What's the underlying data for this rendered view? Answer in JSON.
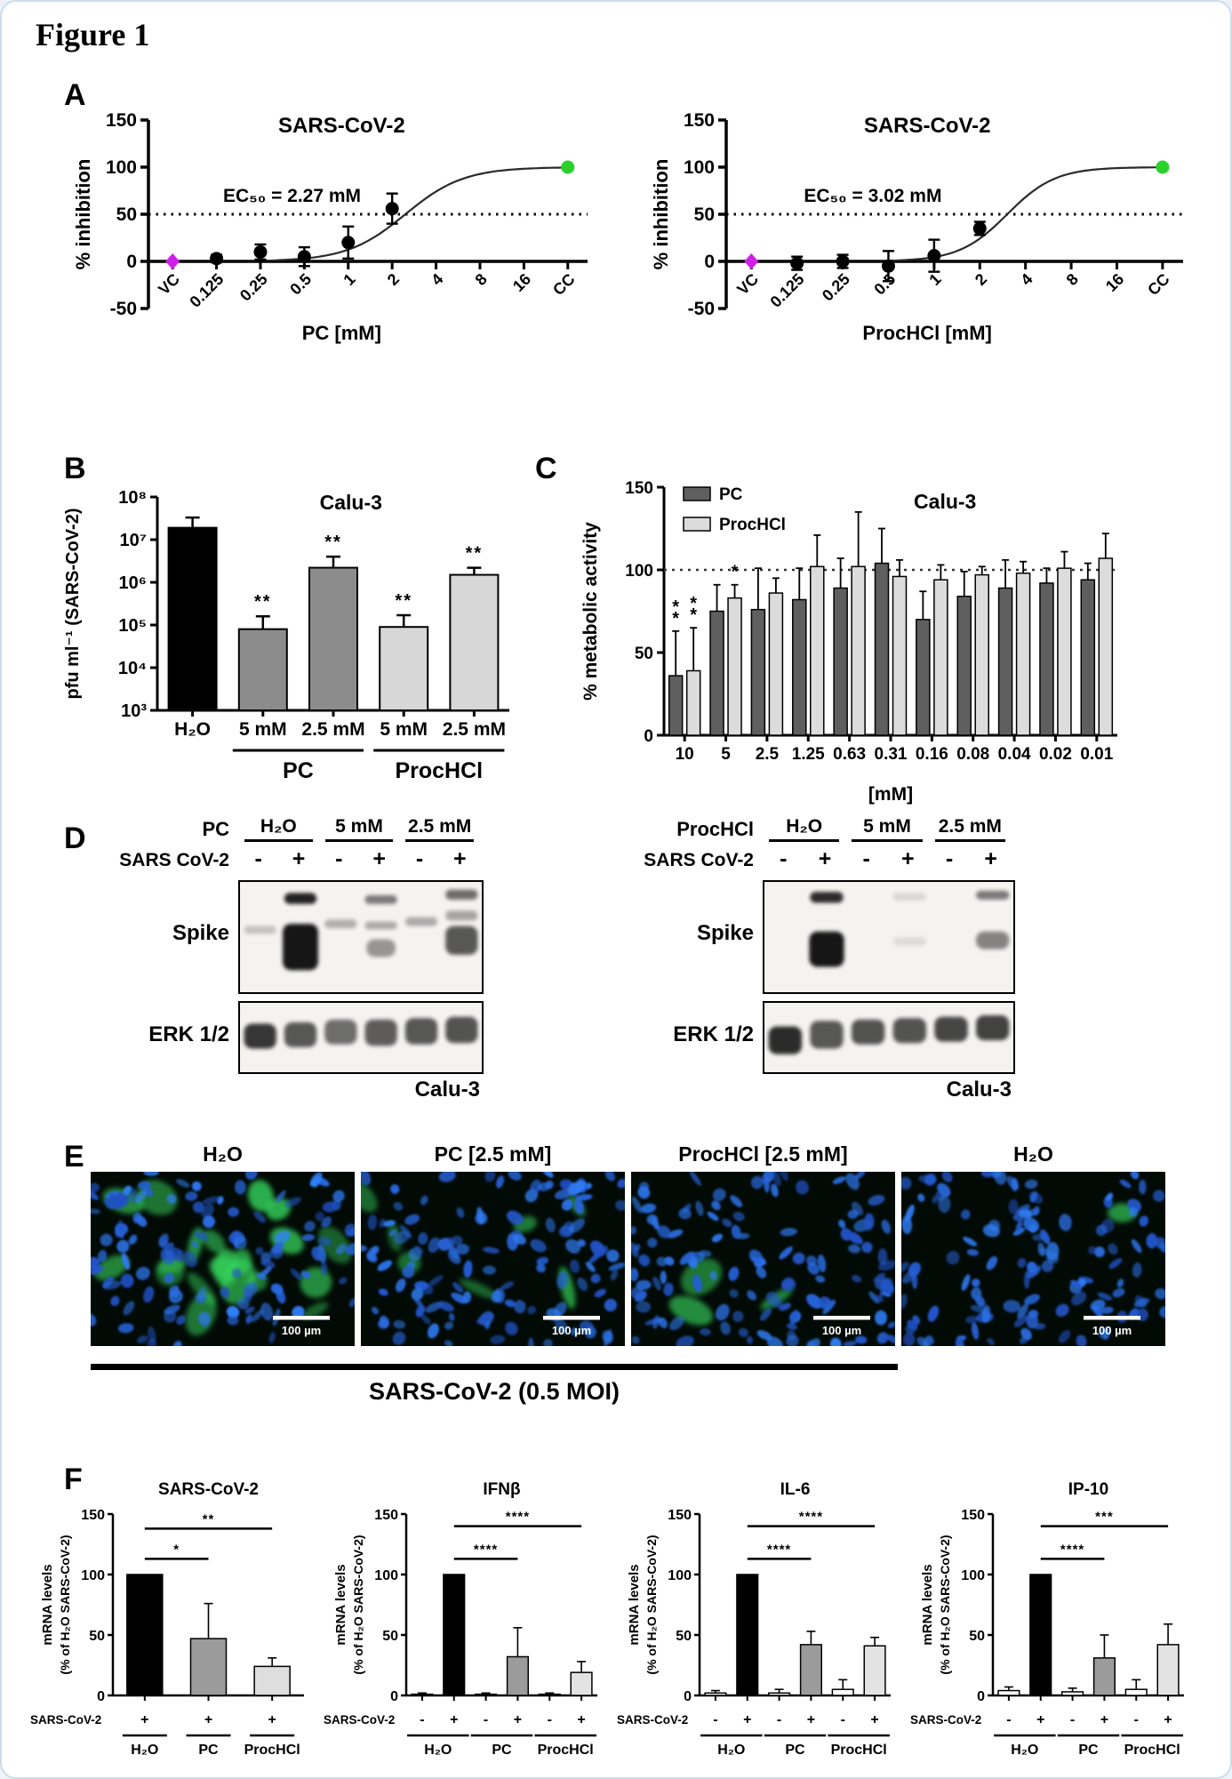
{
  "figure_title": "Figure 1",
  "panel_labels": {
    "a": "A",
    "b": "B",
    "c": "C",
    "d": "D",
    "e": "E",
    "f": "F"
  },
  "colors": {
    "magenta": "#cf1fe8",
    "green": "#2bd12b",
    "pc_dark": "#5f5f5f",
    "pc_mid": "#8c8c8c",
    "proc_light": "#d7d7d7",
    "black": "#000000"
  },
  "chart_data": [
    {
      "id": "dose-pc",
      "render": "dose",
      "type": "line",
      "title": "SARS-CoV-2",
      "annotation": "EC₅₀ = 2.27 mM",
      "ylabel": "% inhibition",
      "ylim": [
        -50,
        150
      ],
      "yticks": [
        -50,
        0,
        50,
        100,
        150
      ],
      "hline": 50,
      "categories": [
        "VC",
        "0.125",
        "0.25",
        "0.5",
        "1",
        "2",
        "4",
        "8",
        "16",
        "CC"
      ],
      "xlabel": "PC [mM]",
      "points": [
        {
          "x": 0,
          "y": 0,
          "e": 0,
          "color": "#cf1fe8",
          "shape": "diamond"
        },
        {
          "x": 1,
          "y": 3,
          "e": 4
        },
        {
          "x": 2,
          "y": 10,
          "e": 8
        },
        {
          "x": 3,
          "y": 5,
          "e": 10
        },
        {
          "x": 4,
          "y": 20,
          "e": 17
        },
        {
          "x": 5,
          "y": 56,
          "e": 16
        },
        {
          "x": 9,
          "y": 100,
          "e": 0,
          "color": "#2bd12b"
        }
      ],
      "curve": {
        "mid": 5.3,
        "k": 1.5,
        "from": 2.3,
        "to": 9
      }
    },
    {
      "id": "dose-proc",
      "render": "dose",
      "type": "line",
      "title": "SARS-CoV-2",
      "annotation": "EC₅₀ = 3.02 mM",
      "ylabel": "% inhibition",
      "ylim": [
        -50,
        150
      ],
      "yticks": [
        -50,
        0,
        50,
        100,
        150
      ],
      "hline": 50,
      "categories": [
        "VC",
        "0.125",
        "0.25",
        "0.5",
        "1",
        "2",
        "4",
        "8",
        "16",
        "CC"
      ],
      "xlabel": "ProcHCl [mM]",
      "points": [
        {
          "x": 0,
          "y": 0,
          "e": 0,
          "color": "#cf1fe8",
          "shape": "diamond"
        },
        {
          "x": 1,
          "y": -2,
          "e": 7
        },
        {
          "x": 2,
          "y": 0,
          "e": 7
        },
        {
          "x": 3,
          "y": -5,
          "e": 16
        },
        {
          "x": 4,
          "y": 6,
          "e": 17
        },
        {
          "x": 5,
          "y": 35,
          "e": 7
        },
        {
          "x": 9,
          "y": 100,
          "e": 0,
          "color": "#2bd12b"
        }
      ],
      "curve": {
        "mid": 5.6,
        "k": 1.9,
        "from": 3.0,
        "to": 9
      }
    },
    {
      "id": "pfu",
      "render": "logbar",
      "type": "bar",
      "title": "Calu-3",
      "ylabel": "pfu ml⁻¹ (SARS-CoV-2)",
      "log_ticks": [
        "10³",
        "10⁴",
        "10⁵",
        "10⁶",
        "10⁷",
        "10⁸"
      ],
      "log_range": [
        3,
        8
      ],
      "categories": [
        "H₂O",
        "5 mM",
        "2.5 mM",
        "5 mM",
        "2.5 mM"
      ],
      "values": [
        19000000.0,
        80000.0,
        2200000.0,
        90000.0,
        1500000.0
      ],
      "err_top": [
        33000000.0,
        160000.0,
        4000000.0,
        170000.0,
        2200000.0
      ],
      "colors": [
        "#000000",
        "#8c8c8c",
        "#8c8c8c",
        "#d7d7d7",
        "#d7d7d7"
      ],
      "sig": [
        "",
        "**",
        "**",
        "**",
        "**"
      ],
      "groups": [
        {
          "label": "PC",
          "from": 1,
          "to": 2
        },
        {
          "label": "ProcHCl",
          "from": 3,
          "to": 4
        }
      ]
    },
    {
      "id": "metab",
      "render": "groupbar",
      "type": "bar",
      "title": "Calu-3",
      "ylabel": "% metabolic activity",
      "ylim": [
        0,
        150
      ],
      "yticks": [
        0,
        50,
        100,
        150
      ],
      "hline": 100,
      "categories": [
        "10",
        "5",
        "2.5",
        "1.25",
        "0.63",
        "0.31",
        "0.16",
        "0.08",
        "0.04",
        "0.02",
        "0.01"
      ],
      "xlabel": "[mM]",
      "series": [
        {
          "name": "PC",
          "color": "#5f5f5f",
          "values": [
            36,
            75,
            76,
            82,
            89,
            104,
            70,
            84,
            89,
            92,
            94
          ],
          "errors": [
            27,
            16,
            25,
            19,
            18,
            21,
            17,
            15,
            17,
            9,
            10
          ]
        },
        {
          "name": "ProcHCl",
          "color": "#dcdcdc",
          "values": [
            39,
            83,
            86,
            102,
            102,
            96,
            94,
            97,
            98,
            101,
            107
          ],
          "errors": [
            26,
            8,
            9,
            19,
            33,
            10,
            9,
            5,
            7,
            10,
            15
          ]
        }
      ],
      "sig": [
        {
          "cat": 0,
          "series": 0,
          "label": "**"
        },
        {
          "cat": 0,
          "series": 1,
          "label": "**"
        },
        {
          "cat": 1,
          "series": 1,
          "label": "*"
        }
      ]
    },
    {
      "id": "f-sars",
      "render": "minibar",
      "type": "bar",
      "title": "SARS-CoV-2",
      "ylabel1": "mRNA levels",
      "ylabel2": "(% of H₂O SARS-CoV-2)",
      "ylim": [
        0,
        150
      ],
      "yticks": [
        0,
        50,
        100,
        150
      ],
      "row_label": "SARS-CoV-2",
      "bars": [
        {
          "sign": "+",
          "value": 100,
          "err": 0,
          "color": "#000000"
        },
        {
          "sign": "+",
          "value": 47,
          "err": 29,
          "color": "#9b9b9b"
        },
        {
          "sign": "+",
          "value": 24,
          "err": 7,
          "color": "#dedede"
        }
      ],
      "groups": [
        {
          "label": "H₂O",
          "from": 0,
          "to": 0
        },
        {
          "label": "PC",
          "from": 1,
          "to": 1
        },
        {
          "label": "ProcHCl",
          "from": 2,
          "to": 2
        }
      ],
      "sig": [
        {
          "from": 0,
          "to": 1,
          "label": "*",
          "y": 113
        },
        {
          "from": 0,
          "to": 2,
          "label": "**",
          "y": 138
        }
      ]
    },
    {
      "id": "f-ifnb",
      "render": "minibar",
      "type": "bar",
      "title": "IFNβ",
      "ylabel1": "mRNA levels",
      "ylabel2": "(% of H₂O SARS-CoV-2)",
      "ylim": [
        0,
        150
      ],
      "yticks": [
        0,
        50,
        100,
        150
      ],
      "row_label": "SARS-CoV-2",
      "bars": [
        {
          "sign": "-",
          "value": 1,
          "err": 1,
          "color": "#ffffff"
        },
        {
          "sign": "+",
          "value": 100,
          "err": 0,
          "color": "#000000"
        },
        {
          "sign": "-",
          "value": 1,
          "err": 1,
          "color": "#ffffff"
        },
        {
          "sign": "+",
          "value": 32,
          "err": 24,
          "color": "#9b9b9b"
        },
        {
          "sign": "-",
          "value": 1,
          "err": 1,
          "color": "#ffffff"
        },
        {
          "sign": "+",
          "value": 19,
          "err": 9,
          "color": "#e3e3e3"
        }
      ],
      "groups": [
        {
          "label": "H₂O",
          "from": 0,
          "to": 1
        },
        {
          "label": "PC",
          "from": 2,
          "to": 3
        },
        {
          "label": "ProcHCl",
          "from": 4,
          "to": 5
        }
      ],
      "sig": [
        {
          "from": 1,
          "to": 3,
          "label": "****",
          "y": 113
        },
        {
          "from": 1,
          "to": 5,
          "label": "****",
          "y": 140
        }
      ]
    },
    {
      "id": "f-il6",
      "render": "minibar",
      "type": "bar",
      "title": "IL-6",
      "ylabel1": "mRNA levels",
      "ylabel2": "(% of H₂O SARS-CoV-2)",
      "ylim": [
        0,
        150
      ],
      "yticks": [
        0,
        50,
        100,
        150
      ],
      "row_label": "SARS-CoV-2",
      "bars": [
        {
          "sign": "-",
          "value": 2,
          "err": 2,
          "color": "#ffffff"
        },
        {
          "sign": "+",
          "value": 100,
          "err": 0,
          "color": "#000000"
        },
        {
          "sign": "-",
          "value": 2,
          "err": 3,
          "color": "#ffffff"
        },
        {
          "sign": "+",
          "value": 42,
          "err": 11,
          "color": "#9b9b9b"
        },
        {
          "sign": "-",
          "value": 5,
          "err": 8,
          "color": "#ffffff"
        },
        {
          "sign": "+",
          "value": 41,
          "err": 7,
          "color": "#e3e3e3"
        }
      ],
      "groups": [
        {
          "label": "H₂O",
          "from": 0,
          "to": 1
        },
        {
          "label": "PC",
          "from": 2,
          "to": 3
        },
        {
          "label": "ProcHCl",
          "from": 4,
          "to": 5
        }
      ],
      "sig": [
        {
          "from": 1,
          "to": 3,
          "label": "****",
          "y": 113
        },
        {
          "from": 1,
          "to": 5,
          "label": "****",
          "y": 140
        }
      ]
    },
    {
      "id": "f-ip10",
      "render": "minibar",
      "type": "bar",
      "title": "IP-10",
      "ylabel1": "mRNA levels",
      "ylabel2": "(% of H₂O SARS-CoV-2)",
      "ylim": [
        0,
        150
      ],
      "yticks": [
        0,
        50,
        100,
        150
      ],
      "row_label": "SARS-CoV-2",
      "bars": [
        {
          "sign": "-",
          "value": 4,
          "err": 3,
          "color": "#ffffff"
        },
        {
          "sign": "+",
          "value": 100,
          "err": 0,
          "color": "#000000"
        },
        {
          "sign": "-",
          "value": 3,
          "err": 3,
          "color": "#ffffff"
        },
        {
          "sign": "+",
          "value": 31,
          "err": 19,
          "color": "#9b9b9b"
        },
        {
          "sign": "-",
          "value": 5,
          "err": 8,
          "color": "#ffffff"
        },
        {
          "sign": "+",
          "value": 42,
          "err": 17,
          "color": "#e3e3e3"
        }
      ],
      "groups": [
        {
          "label": "H₂O",
          "from": 0,
          "to": 1
        },
        {
          "label": "PC",
          "from": 2,
          "to": 3
        },
        {
          "label": "ProcHCl",
          "from": 4,
          "to": 5
        }
      ],
      "sig": [
        {
          "from": 1,
          "to": 3,
          "label": "****",
          "y": 113
        },
        {
          "from": 1,
          "to": 5,
          "label": "***",
          "y": 140
        }
      ]
    }
  ],
  "panel_d": {
    "left": {
      "compound": "PC",
      "columns": [
        "H₂O",
        "5 mM",
        "2.5 mM"
      ],
      "row_label": "SARS CoV-2",
      "signs": [
        "-",
        "+",
        "-",
        "+",
        "-",
        "+"
      ],
      "blot1_label": "Spike",
      "blot2_label": "ERK 1/2",
      "cell_line": "Calu-3",
      "spike_lanes": [
        [
          {
            "y": 0.4,
            "h": 0.07,
            "a": 0.22
          }
        ],
        [
          {
            "y": 0.1,
            "h": 0.1,
            "a": 0.95
          },
          {
            "y": 0.38,
            "h": 0.42,
            "a": 1,
            "w": 1.1
          }
        ],
        [
          {
            "y": 0.34,
            "h": 0.08,
            "a": 0.3
          }
        ],
        [
          {
            "y": 0.12,
            "h": 0.08,
            "a": 0.55
          },
          {
            "y": 0.36,
            "h": 0.07,
            "a": 0.33
          },
          {
            "y": 0.52,
            "h": 0.16,
            "a": 0.42,
            "w": 0.9
          }
        ],
        [
          {
            "y": 0.32,
            "h": 0.08,
            "a": 0.32
          }
        ],
        [
          {
            "y": 0.07,
            "h": 0.09,
            "a": 0.6
          },
          {
            "y": 0.26,
            "h": 0.09,
            "a": 0.35
          },
          {
            "y": 0.4,
            "h": 0.26,
            "a": 0.7
          }
        ]
      ],
      "erk_lanes": [
        [
          {
            "y": 0.3,
            "h": 0.36,
            "a": 0.85
          }
        ],
        [
          {
            "y": 0.28,
            "h": 0.36,
            "a": 0.7
          }
        ],
        [
          {
            "y": 0.24,
            "h": 0.36,
            "a": 0.6
          }
        ],
        [
          {
            "y": 0.24,
            "h": 0.38,
            "a": 0.68
          }
        ],
        [
          {
            "y": 0.22,
            "h": 0.38,
            "a": 0.7
          }
        ],
        [
          {
            "y": 0.2,
            "h": 0.38,
            "a": 0.72
          }
        ]
      ]
    },
    "right": {
      "compound": "ProcHCl",
      "columns": [
        "H₂O",
        "5 mM",
        "2.5 mM"
      ],
      "row_label": "SARS CoV-2",
      "signs": [
        "-",
        "+",
        "-",
        "+",
        "-",
        "+"
      ],
      "blot1_label": "Spike",
      "blot2_label": "ERK 1/2",
      "cell_line": "Calu-3",
      "spike_lanes": [
        [],
        [
          {
            "y": 0.09,
            "h": 0.1,
            "a": 0.9
          },
          {
            "y": 0.45,
            "h": 0.32,
            "a": 1,
            "w": 1.05
          }
        ],
        [],
        [
          {
            "y": 0.1,
            "h": 0.07,
            "a": 0.12
          },
          {
            "y": 0.5,
            "h": 0.08,
            "a": 0.1
          }
        ],
        [],
        [
          {
            "y": 0.08,
            "h": 0.08,
            "a": 0.55
          },
          {
            "y": 0.45,
            "h": 0.16,
            "a": 0.5
          }
        ]
      ],
      "erk_lanes": [
        [
          {
            "y": 0.34,
            "h": 0.4,
            "a": 0.9
          }
        ],
        [
          {
            "y": 0.26,
            "h": 0.4,
            "a": 0.7
          }
        ],
        [
          {
            "y": 0.24,
            "h": 0.36,
            "a": 0.72
          }
        ],
        [
          {
            "y": 0.22,
            "h": 0.36,
            "a": 0.72
          }
        ],
        [
          {
            "y": 0.2,
            "h": 0.36,
            "a": 0.78
          }
        ],
        [
          {
            "y": 0.18,
            "h": 0.36,
            "a": 0.8
          }
        ]
      ]
    }
  },
  "panel_e": {
    "images": [
      {
        "label": "H₂O",
        "green": 20,
        "seed": 11
      },
      {
        "label": "PC [2.5 mM]",
        "green": 7,
        "seed": 22
      },
      {
        "label": "ProcHCl [2.5 mM]",
        "green": 3,
        "seed": 33
      },
      {
        "label": "H₂O",
        "green": 1,
        "seed": 44
      }
    ],
    "scale_bar": "100 µm",
    "caption": "SARS-CoV-2  (0.5 MOI)"
  }
}
